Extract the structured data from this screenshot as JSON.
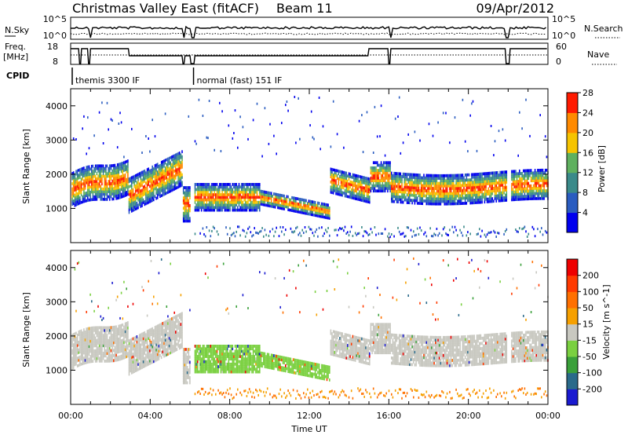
{
  "header": {
    "title": "Christmas Valley East (fitACF)",
    "beam": "Beam 11",
    "date": "09/Apr/2012"
  },
  "strip": {
    "nsky_label": "N.Sky",
    "nsky_ticks": [
      "10^5",
      "10^0"
    ],
    "nsearch_label": "N.Search",
    "nsearch_ticks": [
      "10^5",
      "10^0"
    ],
    "freq_label_1": "Freq.",
    "freq_label_2": "[MHz]",
    "freq_ticks": [
      "18",
      "8"
    ],
    "nave_label": "Nave",
    "nave_ticks": [
      "60",
      "0"
    ],
    "cpid_label": "CPID",
    "cpid_segments": [
      {
        "label": "themis 3300 IF",
        "start_h": 0.0,
        "end_h": 6.1
      },
      {
        "label": "normal (fast) 151 IF",
        "start_h": 6.1,
        "end_h": 24.0
      }
    ]
  },
  "chart_data": [
    {
      "type": "heatmap",
      "name": "power",
      "ylabel": "Slant Range [km]",
      "xlabel": "",
      "xlim_hours": [
        0,
        24
      ],
      "ylim": [
        0,
        4500
      ],
      "yticks": [
        "1000",
        "2000",
        "3000",
        "4000"
      ],
      "xticks": [
        "00:00",
        "04:00",
        "08:00",
        "12:00",
        "16:00",
        "20:00",
        "00:00"
      ],
      "colorbar_label": "Power [dB]",
      "colorbar_ticks": [
        "4",
        "8",
        "12",
        "16",
        "20",
        "24",
        "28"
      ],
      "colorbar_colors": [
        "#0000ee",
        "#2a5cc0",
        "#3a8a8a",
        "#5fb05f",
        "#f6c400",
        "#ff8a00",
        "#ff1a00"
      ]
    },
    {
      "type": "heatmap",
      "name": "velocity",
      "ylabel": "Slant Range [km]",
      "xlabel": "Time UT",
      "xlim_hours": [
        0,
        24
      ],
      "ylim": [
        0,
        4500
      ],
      "yticks": [
        "1000",
        "2000",
        "3000",
        "4000"
      ],
      "xticks": [
        "00:00",
        "04:00",
        "08:00",
        "12:00",
        "16:00",
        "20:00",
        "00:00"
      ],
      "colorbar_label": "Velocity [m s^-1]",
      "colorbar_ticks": [
        "200",
        "100",
        "50",
        "15",
        "-15",
        "-50",
        "-100",
        "-200"
      ],
      "colorbar_colors": [
        "#1a1ad0",
        "#2a6a8a",
        "#3aa03a",
        "#7ad040",
        "#c8c8c0",
        "#f6a000",
        "#ff7000",
        "#ff3a00",
        "#ee0000"
      ]
    }
  ]
}
